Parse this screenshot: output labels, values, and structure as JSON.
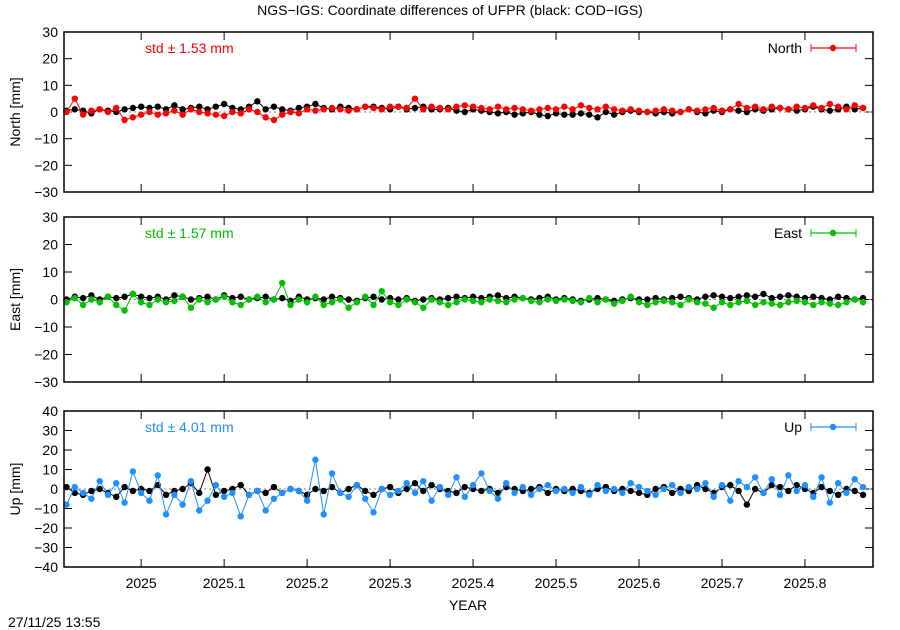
{
  "title": "NGS−IGS: Coordinate differences of UFPR (black: COD−IGS)",
  "timestamp": "27/11/25 13:55",
  "chart_data": [
    {
      "type": "line",
      "ylabel": "North [mm]",
      "ylim": [
        -30,
        30
      ],
      "yticks": [
        -30,
        -20,
        -10,
        0,
        10,
        20,
        30
      ],
      "xlim": [
        2024.907,
        2025.882
      ],
      "std_label": "std ± 1.53 mm",
      "legend": "North",
      "legend_position": "top-right",
      "color": "#ff0000",
      "x_start": 2024.91,
      "x_step": 0.01,
      "series": [
        {
          "color": "#000000",
          "values": [
            0.5,
            1,
            0.5,
            -0.5,
            1,
            0.5,
            0,
            1,
            1.5,
            2,
            1.5,
            2,
            1,
            2.5,
            1,
            1.5,
            2,
            1,
            2,
            3,
            1.5,
            1,
            2,
            4,
            1,
            2,
            1,
            0.5,
            1.5,
            2,
            3,
            1.5,
            1,
            2,
            1.5,
            1,
            2,
            2,
            1.5,
            1,
            2,
            1,
            1.5,
            2,
            1,
            1,
            1.5,
            0.5,
            0,
            1,
            0.5,
            0,
            -0.5,
            0,
            -1,
            -0.5,
            0,
            -1,
            -1.5,
            -0.5,
            -1,
            -1,
            -0.5,
            -1,
            -2,
            0,
            -1,
            0,
            0.5,
            0,
            0,
            -0.5,
            0,
            -0.5,
            0,
            1,
            0,
            -0.5,
            0.5,
            0,
            1,
            0.5,
            0,
            1,
            0.5,
            1,
            1.5,
            1,
            0.5,
            1,
            2,
            1,
            0.5,
            1,
            2,
            1,
            1.5
          ]
        },
        {
          "name": "North",
          "color": "#ff0000",
          "values": [
            0,
            5,
            -1,
            0.5,
            1,
            0,
            1.5,
            -3,
            -2,
            -1,
            0,
            -1,
            -0.5,
            0.5,
            -1,
            1,
            0,
            -0.5,
            -1,
            -1.5,
            0,
            -0.5,
            1,
            0,
            -2,
            -3,
            -1,
            0,
            -0.5,
            1,
            0.5,
            1,
            1.5,
            1,
            0.5,
            1,
            2,
            1.5,
            1,
            2,
            2,
            1.5,
            5,
            1,
            2,
            1.5,
            1,
            2,
            2.5,
            2,
            1.5,
            1,
            2,
            1,
            1.5,
            1,
            0.5,
            1,
            1.5,
            1,
            2,
            1,
            2.5,
            1.5,
            1,
            2,
            1,
            0.5,
            1,
            0.5,
            0,
            0.5,
            1,
            0.5,
            0,
            1,
            0.5,
            1,
            1.5,
            0.5,
            1,
            3,
            1.5,
            2,
            1,
            2,
            1.5,
            1,
            2,
            1.5,
            2.5,
            1.5,
            3,
            2,
            1,
            2.5,
            1.5
          ]
        }
      ]
    },
    {
      "type": "line",
      "ylabel": "East [mm]",
      "ylim": [
        -30,
        30
      ],
      "yticks": [
        -30,
        -20,
        -10,
        0,
        10,
        20,
        30
      ],
      "xlim": [
        2024.907,
        2025.882
      ],
      "std_label": "std ± 1.57 mm",
      "legend": "East",
      "legend_position": "top-right",
      "color": "#00c000",
      "x_start": 2024.91,
      "x_step": 0.01,
      "series": [
        {
          "color": "#000000",
          "values": [
            0,
            1,
            0.5,
            1.5,
            0,
            1,
            0.5,
            1,
            2,
            1,
            0.5,
            1,
            0,
            1.5,
            1,
            0,
            0.5,
            1,
            0,
            1.5,
            0.5,
            1,
            0,
            0.5,
            1,
            0,
            0.5,
            -0.5,
            1,
            0,
            0.5,
            0,
            1,
            0.5,
            0,
            -0.5,
            0.5,
            1,
            0,
            0.5,
            0,
            0.5,
            -0.5,
            0,
            0.5,
            0,
            0.5,
            1,
            0.5,
            1,
            0.5,
            1,
            1.5,
            0.5,
            1,
            0.5,
            0,
            0.5,
            1,
            0,
            0.5,
            0,
            -0.5,
            0,
            0.5,
            0,
            -0.5,
            0,
            0.5,
            0,
            0,
            0.5,
            0,
            0.5,
            1,
            0.5,
            0,
            1,
            1.5,
            1,
            0.5,
            1,
            1.5,
            1,
            2,
            0.5,
            1,
            1.5,
            1,
            0.5,
            1,
            0.5,
            0,
            1,
            0.5,
            0,
            0.5
          ]
        },
        {
          "name": "East",
          "color": "#00c000",
          "values": [
            -1,
            0.5,
            -2,
            0,
            -1,
            1,
            -2,
            -4,
            2,
            -1,
            -2,
            0,
            -1,
            -0.5,
            1,
            -3,
            0,
            -1,
            0,
            1,
            -1,
            -2,
            0,
            1,
            -1,
            0,
            6,
            -2,
            0,
            -1,
            1,
            -2,
            -1,
            0,
            -3,
            -1,
            1,
            -2,
            3,
            -1,
            -2,
            0,
            -1,
            -3,
            0,
            -1,
            -2,
            -1,
            0,
            -0.5,
            -1,
            0,
            -0.5,
            -1,
            0,
            0.5,
            -0.5,
            -1,
            0,
            -0.5,
            0,
            -0.5,
            -1,
            0.5,
            -1,
            0,
            -1.5,
            -0.5,
            1,
            -1,
            -2,
            -1,
            -0.5,
            -1,
            -2,
            0,
            -1,
            -1.5,
            -3,
            -1,
            -2,
            -1,
            -0.5,
            -2,
            -1,
            -1.5,
            -2,
            -1,
            -0.5,
            -1,
            -2,
            -1,
            -1.5,
            -2,
            -1,
            0,
            -1
          ]
        }
      ]
    },
    {
      "type": "line",
      "ylabel": "Up [mm]",
      "xlabel": "YEAR",
      "ylim": [
        -40,
        40
      ],
      "yticks": [
        -40,
        -30,
        -20,
        -10,
        0,
        10,
        20,
        30,
        40
      ],
      "xlim": [
        2024.907,
        2025.882
      ],
      "xticks": [
        "2025",
        "2025.1",
        "2025.2",
        "2025.3",
        "2025.4",
        "2025.5",
        "2025.6",
        "2025.7",
        "2025.8"
      ],
      "std_label": "std ± 4.01 mm",
      "legend": "Up",
      "legend_position": "top-right",
      "color": "#1e90ff",
      "x_start": 2024.91,
      "x_step": 0.01,
      "series": [
        {
          "color": "#000000",
          "values": [
            1,
            -2,
            -3,
            -1,
            0,
            -2,
            -4,
            1,
            -1,
            0,
            -1,
            2,
            -3,
            -1,
            0,
            3,
            -2,
            10,
            -3,
            -1,
            0,
            2,
            -3,
            -1,
            -2,
            1,
            -2,
            0,
            -1,
            -3,
            0,
            -1,
            1,
            -2,
            0,
            2,
            -1,
            -3,
            0,
            1,
            -2,
            0,
            3,
            -1,
            2,
            0,
            -1,
            -2,
            1,
            0,
            -1,
            0,
            -2,
            1,
            0,
            -1,
            0,
            1,
            -2,
            0,
            -1,
            0,
            -1,
            -2,
            0,
            1,
            -1,
            0,
            -1,
            -2,
            -3,
            0,
            1,
            -2,
            0,
            -1,
            2,
            0,
            -2,
            1,
            2,
            -1,
            -8,
            0,
            -2,
            2,
            1,
            -1,
            2,
            0,
            -2,
            1,
            -1,
            -3,
            0,
            -1,
            -3
          ]
        },
        {
          "name": "Up",
          "color": "#1e90ff",
          "values": [
            -8,
            1,
            -2,
            -5,
            4,
            -3,
            3,
            -7,
            9,
            -2,
            -6,
            7,
            -13,
            -3,
            -8,
            4,
            -11,
            -6,
            2,
            -4,
            -2,
            -14,
            -3,
            -1,
            -11,
            -5,
            -2,
            0,
            -1,
            -6,
            15,
            -13,
            8,
            -2,
            -4,
            2,
            -5,
            -12,
            0,
            -3,
            -1,
            3,
            -2,
            4,
            -6,
            1,
            -3,
            6,
            -4,
            2,
            8,
            -1,
            -5,
            3,
            -2,
            1,
            -3,
            0,
            2,
            -1,
            0,
            -2,
            1,
            -3,
            2,
            -1,
            0,
            -2,
            3,
            1,
            -1,
            -3,
            0,
            2,
            -2,
            1,
            0,
            3,
            -4,
            2,
            -6,
            4,
            1,
            6,
            -2,
            5,
            -3,
            7,
            -1,
            2,
            -4,
            6,
            -7,
            3,
            -2,
            5,
            1
          ]
        }
      ]
    }
  ]
}
